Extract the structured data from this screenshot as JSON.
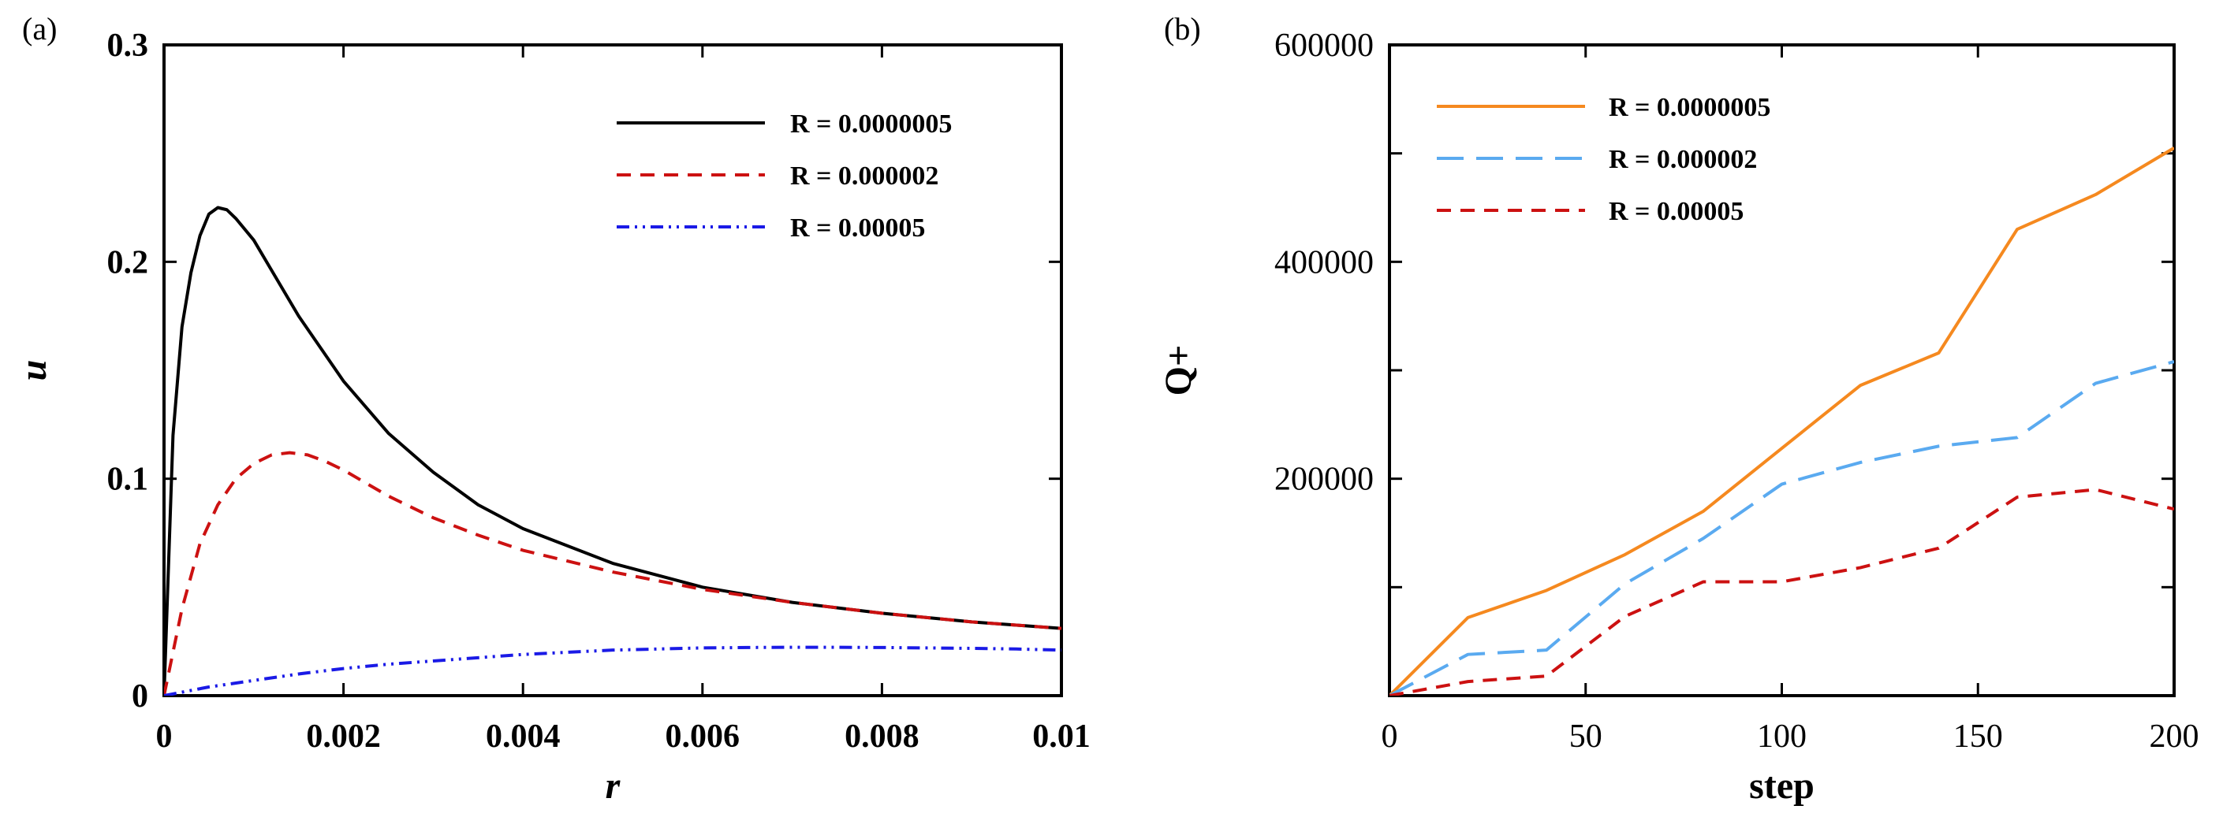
{
  "chart_data": [
    {
      "panel": "(a)",
      "type": "line",
      "xlabel": "r",
      "ylabel": "u",
      "xlim": [
        0,
        0.01
      ],
      "ylim": [
        0,
        0.3
      ],
      "xticks": [
        0,
        0.002,
        0.004,
        0.006,
        0.008,
        0.01
      ],
      "xtick_labels": [
        "0",
        "0.002",
        "0.004",
        "0.006",
        "0.008",
        "0.01"
      ],
      "yticks": [
        0,
        0.1,
        0.2,
        0.3
      ],
      "ytick_labels": [
        "0",
        "0.1",
        "0.2",
        "0.3"
      ],
      "legend_position": "top-right",
      "series": [
        {
          "name": "R = 0.0000005",
          "color": "#000000",
          "dash": "solid",
          "x": [
            0,
            0.0001,
            0.0002,
            0.0003,
            0.0004,
            0.0005,
            0.0006,
            0.0007,
            0.0008,
            0.001,
            0.0012,
            0.0015,
            0.002,
            0.0025,
            0.003,
            0.0035,
            0.004,
            0.005,
            0.006,
            0.007,
            0.008,
            0.009,
            0.01
          ],
          "values": [
            0,
            0.12,
            0.17,
            0.195,
            0.212,
            0.222,
            0.225,
            0.224,
            0.22,
            0.21,
            0.196,
            0.175,
            0.145,
            0.121,
            0.103,
            0.088,
            0.077,
            0.061,
            0.05,
            0.043,
            0.038,
            0.034,
            0.031
          ]
        },
        {
          "name": "R = 0.000002",
          "color": "#cc1111",
          "dash": "dashed",
          "x": [
            0,
            0.0002,
            0.0004,
            0.0006,
            0.0008,
            0.001,
            0.0012,
            0.0014,
            0.0016,
            0.0018,
            0.002,
            0.0025,
            0.003,
            0.0035,
            0.004,
            0.005,
            0.006,
            0.007,
            0.008,
            0.009,
            0.01
          ],
          "values": [
            0,
            0.04,
            0.07,
            0.088,
            0.1,
            0.107,
            0.111,
            0.112,
            0.111,
            0.108,
            0.104,
            0.092,
            0.082,
            0.074,
            0.067,
            0.057,
            0.049,
            0.043,
            0.038,
            0.034,
            0.031
          ]
        },
        {
          "name": "R = 0.00005",
          "color": "#1a1ae6",
          "dash": "dash-dot-dot",
          "x": [
            0,
            0.0005,
            0.001,
            0.0015,
            0.002,
            0.0025,
            0.003,
            0.0035,
            0.004,
            0.0045,
            0.005,
            0.0055,
            0.006,
            0.0065,
            0.007,
            0.0075,
            0.008,
            0.0085,
            0.009,
            0.0095,
            0.01
          ],
          "values": [
            0,
            0.004,
            0.007,
            0.01,
            0.0125,
            0.0145,
            0.016,
            0.0175,
            0.019,
            0.02,
            0.021,
            0.0215,
            0.022,
            0.0222,
            0.0223,
            0.0223,
            0.0222,
            0.022,
            0.0218,
            0.0215,
            0.021
          ]
        }
      ]
    },
    {
      "panel": "(b)",
      "type": "line",
      "xlabel": "step",
      "ylabel": "Q+",
      "xlim": [
        0,
        200
      ],
      "ylim": [
        0,
        600000
      ],
      "xticks": [
        0,
        50,
        100,
        150,
        200
      ],
      "xtick_labels": [
        "0",
        "50",
        "100",
        "150",
        "200"
      ],
      "yticks": [
        0,
        100000,
        200000,
        300000,
        400000,
        500000,
        600000
      ],
      "ytick_labels": [
        "",
        "",
        "200000",
        "",
        "400000",
        "",
        "600000"
      ],
      "legend_position": "top-left",
      "series": [
        {
          "name": "R = 0.0000005",
          "color": "#f5891f",
          "dash": "solid",
          "x": [
            0,
            20,
            40,
            60,
            80,
            100,
            120,
            140,
            160,
            180,
            200
          ],
          "values": [
            0,
            72000,
            97000,
            130000,
            170000,
            228000,
            286000,
            316000,
            430000,
            462000,
            505000
          ]
        },
        {
          "name": "R = 0.000002",
          "color": "#5aaaf0",
          "dash": "long-dash",
          "x": [
            0,
            20,
            40,
            60,
            80,
            100,
            120,
            140,
            160,
            180,
            200
          ],
          "values": [
            0,
            38000,
            42000,
            103000,
            145000,
            195000,
            215000,
            230000,
            238000,
            288000,
            308000
          ]
        },
        {
          "name": "R = 0.00005",
          "color": "#cc1111",
          "dash": "dashed",
          "x": [
            0,
            20,
            40,
            60,
            80,
            100,
            120,
            140,
            160,
            180,
            200
          ],
          "values": [
            0,
            13000,
            18000,
            73000,
            105000,
            105000,
            118000,
            136000,
            183000,
            190000,
            172000
          ]
        }
      ]
    }
  ]
}
